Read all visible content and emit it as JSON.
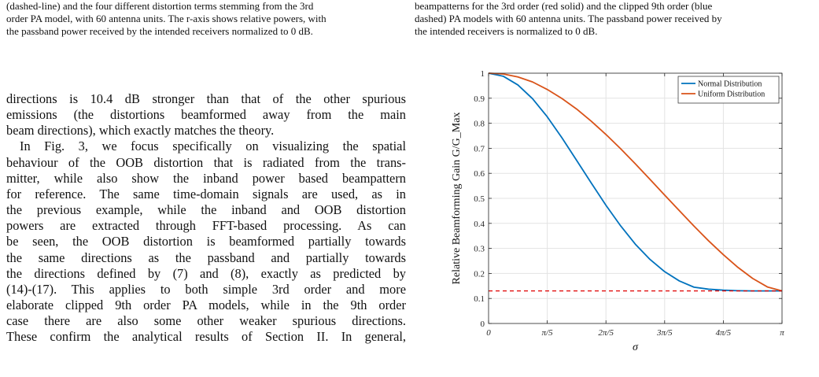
{
  "left_caption_lines": [
    "(dashed-line) and the four different distortion terms stemming from the 3rd",
    "order PA model, with 60 antenna units. The r-axis shows relative powers, with",
    "the passband power received by the intended receivers normalized to 0 dB."
  ],
  "right_caption_lines": [
    "beampatterns for the 3rd order (red solid) and the clipped 9th order (blue",
    "dashed) PA models with 60 antenna units. The passband power received by",
    "the intended receivers is normalized to 0 dB."
  ],
  "body_paragraph_1": [
    "directions is 10.4 dB stronger than that of the other spurious",
    "emissions (the distortions beamformed away from the main",
    "beam directions), which exactly matches the theory."
  ],
  "body_paragraph_2": [
    "In Fig. 3, we focus specifically on visualizing the spatial",
    "behaviour of the OOB distortion that is radiated from the trans-",
    "mitter, while also show the inband power based beampattern",
    "for reference. The same time-domain signals are used, as in",
    "the previous example, while the inband and OOB distortion",
    "powers are extracted through FFT-based processing. As can",
    "be seen, the OOB distortion is beamformed partially towards",
    "the same directions as the passband and partially towards",
    "the directions defined by (7) and (8), exactly as predicted by",
    "(14)-(17). This applies to both simple 3rd order and more",
    "elaborate clipped 9th order PA models, while in the 9th order",
    "case there are also some other weaker spurious directions.",
    "These confirm the analytical results of Section II. In general,"
  ],
  "chart_data": {
    "type": "line",
    "ylabel": "Relative Beamforming Gain G/G_Max",
    "xlabel": "σ",
    "xlim": [
      0,
      3.14159
    ],
    "ylim": [
      0,
      1
    ],
    "x_tick_labels": [
      "0",
      "π/5",
      "2π/5",
      "3π/5",
      "4π/5",
      "π"
    ],
    "y_tick_labels": [
      "0",
      "0.1",
      "0.2",
      "0.3",
      "0.4",
      "0.5",
      "0.6",
      "0.7",
      "0.8",
      "0.9",
      "1"
    ],
    "grid": true,
    "legend_position": "top-right",
    "x": [
      0,
      0.157,
      0.314,
      0.471,
      0.628,
      0.785,
      0.942,
      1.1,
      1.257,
      1.414,
      1.571,
      1.728,
      1.885,
      2.042,
      2.199,
      2.356,
      2.513,
      2.67,
      2.827,
      2.985,
      3.142
    ],
    "series": [
      {
        "name": "Normal Distribution",
        "color": "#0072BD",
        "values": [
          1.0,
          0.988,
          0.953,
          0.898,
          0.826,
          0.742,
          0.652,
          0.561,
          0.472,
          0.39,
          0.317,
          0.256,
          0.207,
          0.17,
          0.145,
          0.137,
          0.133,
          0.131,
          0.13,
          0.13,
          0.13
        ]
      },
      {
        "name": "Uniform Distribution",
        "color": "#D95319",
        "values": [
          1.0,
          0.997,
          0.985,
          0.965,
          0.935,
          0.899,
          0.857,
          0.808,
          0.755,
          0.698,
          0.638,
          0.576,
          0.513,
          0.451,
          0.389,
          0.33,
          0.275,
          0.224,
          0.18,
          0.146,
          0.13
        ]
      },
      {
        "name": "",
        "color": "#E00000",
        "style": "dashed",
        "constant": 0.13
      }
    ]
  }
}
